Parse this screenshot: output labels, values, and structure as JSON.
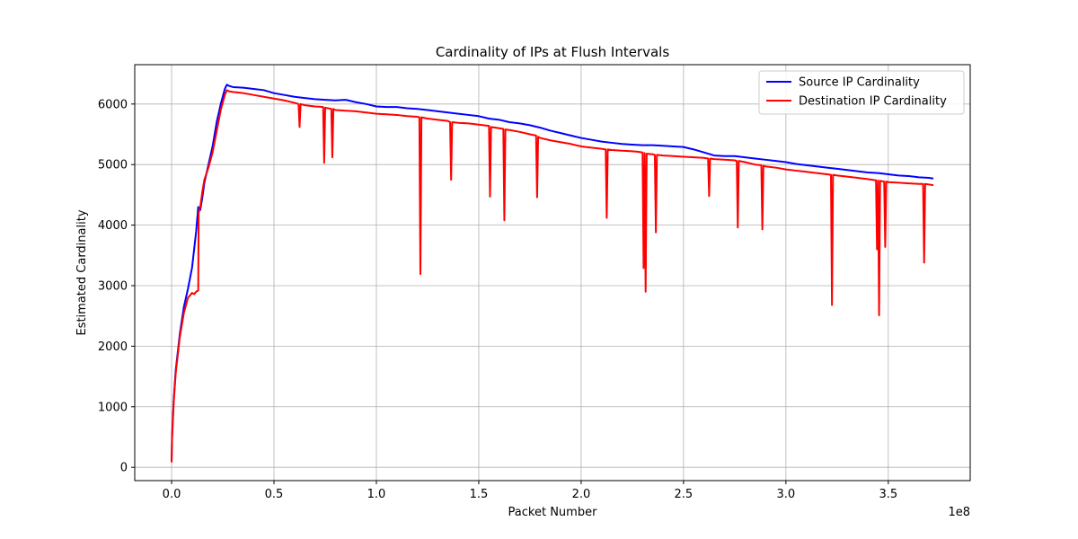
{
  "chart_data": {
    "type": "line",
    "title": "Cardinality of IPs at Flush Intervals",
    "xlabel": "Packet Number",
    "ylabel": "Estimated Cardinality",
    "x_offset_label": "1e8",
    "xlim": [
      -0.18,
      3.9
    ],
    "ylim": [
      -220,
      6650
    ],
    "grid": true,
    "legend_position": "top-right",
    "x_ticks": [
      0.0,
      0.5,
      1.0,
      1.5,
      2.0,
      2.5,
      3.0,
      3.5
    ],
    "x_tick_labels": [
      "0.0",
      "0.5",
      "1.0",
      "1.5",
      "2.0",
      "2.5",
      "3.0",
      "3.5"
    ],
    "y_ticks": [
      0,
      1000,
      2000,
      3000,
      4000,
      5000,
      6000
    ],
    "y_tick_labels": [
      "0",
      "1000",
      "2000",
      "3000",
      "4000",
      "5000",
      "6000"
    ],
    "series": [
      {
        "name": "Source IP Cardinality",
        "color": "#0000ff",
        "x": [
          0.0,
          0.002,
          0.01,
          0.02,
          0.04,
          0.06,
          0.08,
          0.1,
          0.12,
          0.13,
          0.14,
          0.15,
          0.16,
          0.18,
          0.2,
          0.22,
          0.24,
          0.26,
          0.27,
          0.28,
          0.3,
          0.35,
          0.4,
          0.45,
          0.5,
          0.55,
          0.6,
          0.65,
          0.7,
          0.75,
          0.8,
          0.85,
          0.9,
          0.95,
          1.0,
          1.05,
          1.1,
          1.15,
          1.2,
          1.25,
          1.3,
          1.35,
          1.4,
          1.45,
          1.5,
          1.55,
          1.6,
          1.65,
          1.7,
          1.75,
          1.8,
          1.85,
          1.9,
          1.95,
          2.0,
          2.05,
          2.1,
          2.15,
          2.2,
          2.25,
          2.3,
          2.35,
          2.4,
          2.45,
          2.5,
          2.55,
          2.6,
          2.65,
          2.7,
          2.75,
          2.8,
          2.85,
          2.9,
          2.95,
          3.0,
          3.05,
          3.1,
          3.15,
          3.2,
          3.25,
          3.3,
          3.35,
          3.4,
          3.45,
          3.5,
          3.55,
          3.6,
          3.65,
          3.7,
          3.72
        ],
        "y": [
          100,
          500,
          1100,
          1600,
          2200,
          2650,
          2950,
          3300,
          3900,
          4300,
          4250,
          4450,
          4700,
          5000,
          5300,
          5700,
          6000,
          6250,
          6320,
          6300,
          6280,
          6270,
          6250,
          6230,
          6180,
          6150,
          6120,
          6100,
          6080,
          6070,
          6060,
          6070,
          6030,
          6000,
          5960,
          5950,
          5950,
          5930,
          5920,
          5900,
          5880,
          5860,
          5840,
          5820,
          5800,
          5760,
          5740,
          5700,
          5680,
          5650,
          5610,
          5560,
          5520,
          5480,
          5440,
          5410,
          5380,
          5360,
          5340,
          5330,
          5320,
          5320,
          5310,
          5300,
          5290,
          5250,
          5200,
          5150,
          5140,
          5140,
          5120,
          5100,
          5080,
          5060,
          5040,
          5010,
          4990,
          4970,
          4950,
          4930,
          4910,
          4890,
          4870,
          4860,
          4840,
          4820,
          4810,
          4790,
          4780,
          4770
        ]
      },
      {
        "name": "Destination IP Cardinality",
        "color": "#ff0000",
        "x": [
          0.0,
          0.002,
          0.01,
          0.02,
          0.04,
          0.06,
          0.08,
          0.1,
          0.11,
          0.12,
          0.13,
          0.132,
          0.14,
          0.15,
          0.16,
          0.18,
          0.2,
          0.22,
          0.24,
          0.26,
          0.27,
          0.28,
          0.3,
          0.35,
          0.4,
          0.45,
          0.5,
          0.55,
          0.6,
          0.62,
          0.625,
          0.63,
          0.65,
          0.7,
          0.74,
          0.745,
          0.75,
          0.78,
          0.785,
          0.79,
          0.8,
          0.85,
          0.9,
          0.95,
          1.0,
          1.05,
          1.1,
          1.15,
          1.2,
          1.21,
          1.215,
          1.22,
          1.25,
          1.3,
          1.35,
          1.36,
          1.365,
          1.37,
          1.4,
          1.45,
          1.5,
          1.55,
          1.555,
          1.56,
          1.6,
          1.62,
          1.625,
          1.63,
          1.65,
          1.7,
          1.75,
          1.78,
          1.785,
          1.79,
          1.8,
          1.85,
          1.9,
          1.95,
          2.0,
          2.05,
          2.1,
          2.12,
          2.125,
          2.13,
          2.15,
          2.2,
          2.25,
          2.28,
          2.3,
          2.305,
          2.31,
          2.315,
          2.32,
          2.35,
          2.36,
          2.365,
          2.37,
          2.4,
          2.45,
          2.5,
          2.55,
          2.6,
          2.62,
          2.625,
          2.63,
          2.65,
          2.7,
          2.75,
          2.76,
          2.765,
          2.77,
          2.8,
          2.85,
          2.88,
          2.885,
          2.89,
          2.9,
          2.95,
          3.0,
          3.05,
          3.1,
          3.15,
          3.2,
          3.22,
          3.225,
          3.23,
          3.25,
          3.3,
          3.35,
          3.4,
          3.44,
          3.445,
          3.45,
          3.455,
          3.46,
          3.48,
          3.485,
          3.49,
          3.5,
          3.55,
          3.6,
          3.65,
          3.67,
          3.675,
          3.68,
          3.7,
          3.72
        ],
        "y": [
          80,
          450,
          1050,
          1550,
          2150,
          2550,
          2800,
          2880,
          2860,
          2900,
          2920,
          4200,
          4300,
          4550,
          4750,
          4950,
          5200,
          5550,
          5900,
          6150,
          6230,
          6210,
          6200,
          6180,
          6150,
          6120,
          6090,
          6060,
          6020,
          6000,
          5620,
          6000,
          5980,
          5960,
          5950,
          5030,
          5940,
          5920,
          5120,
          5920,
          5900,
          5890,
          5880,
          5860,
          5840,
          5830,
          5820,
          5800,
          5790,
          5780,
          3190,
          5780,
          5760,
          5740,
          5720,
          5700,
          4750,
          5700,
          5690,
          5680,
          5660,
          5640,
          4470,
          5620,
          5600,
          5590,
          4080,
          5580,
          5570,
          5540,
          5500,
          5480,
          4460,
          5460,
          5440,
          5400,
          5370,
          5340,
          5300,
          5280,
          5260,
          5250,
          4120,
          5250,
          5240,
          5230,
          5220,
          5210,
          5200,
          3290,
          5190,
          2900,
          5180,
          5170,
          5160,
          3880,
          5160,
          5150,
          5140,
          5130,
          5120,
          5110,
          5100,
          4480,
          5100,
          5090,
          5080,
          5070,
          5060,
          3960,
          5060,
          5040,
          5000,
          4990,
          3930,
          4980,
          4970,
          4950,
          4920,
          4900,
          4880,
          4860,
          4840,
          4830,
          2680,
          4830,
          4820,
          4800,
          4780,
          4760,
          4740,
          3600,
          4740,
          2510,
          4730,
          4720,
          3640,
          4720,
          4710,
          4700,
          4690,
          4680,
          4680,
          3380,
          4680,
          4670,
          4660
        ]
      }
    ]
  }
}
